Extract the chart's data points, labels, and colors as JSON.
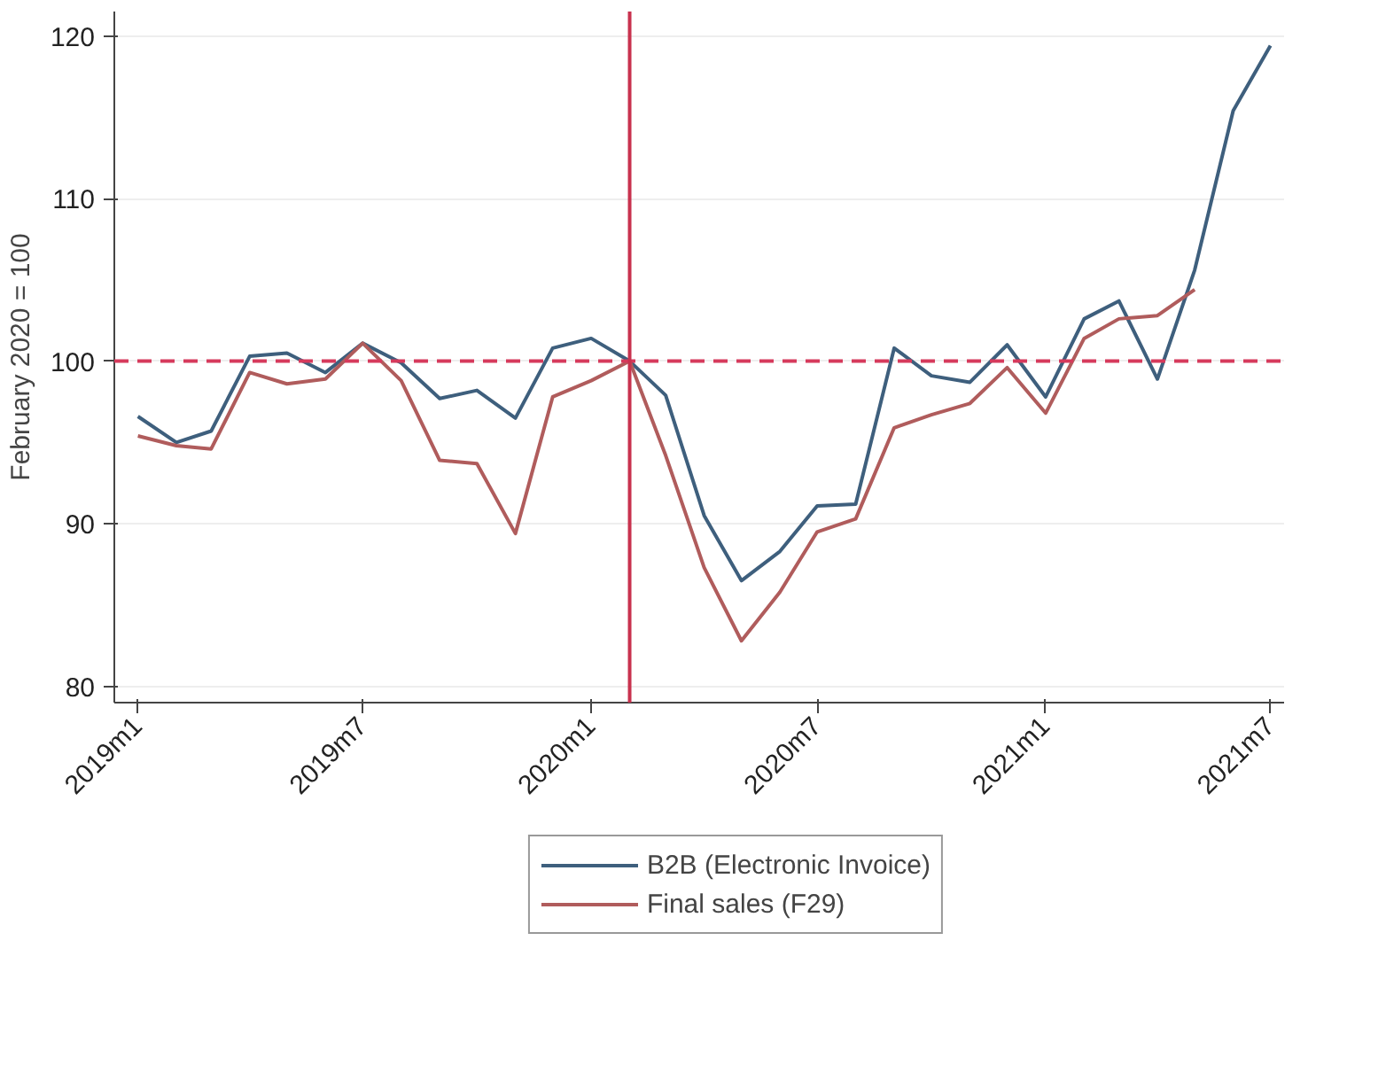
{
  "chart_data": {
    "type": "line",
    "ylabel": "February 2020 = 100",
    "x": [
      "2019-01",
      "2019-02",
      "2019-03",
      "2019-04",
      "2019-05",
      "2019-06",
      "2019-07",
      "2019-08",
      "2019-09",
      "2019-10",
      "2019-11",
      "2019-12",
      "2020-01",
      "2020-02",
      "2020-03",
      "2020-04",
      "2020-05",
      "2020-06",
      "2020-07",
      "2020-08",
      "2020-09",
      "2020-10",
      "2020-11",
      "2020-12",
      "2021-01",
      "2021-02",
      "2021-03",
      "2021-04",
      "2021-05",
      "2021-06",
      "2021-07"
    ],
    "series": [
      {
        "name": "B2B (Electronic Invoice)",
        "color": "#3e5f7d",
        "values": [
          96.6,
          95.0,
          95.7,
          100.3,
          100.5,
          99.3,
          101.1,
          99.9,
          97.7,
          98.2,
          96.5,
          100.8,
          101.4,
          100,
          97.9,
          90.5,
          86.5,
          88.3,
          91.1,
          91.2,
          100.8,
          99.1,
          98.7,
          101.0,
          97.8,
          102.6,
          103.7,
          98.9,
          105.6,
          115.4,
          119.4
        ]
      },
      {
        "name": "Final sales (F29)",
        "color": "#b05c5c",
        "values": [
          95.4,
          94.8,
          94.6,
          99.3,
          98.6,
          98.9,
          101.1,
          98.8,
          93.9,
          93.7,
          89.4,
          97.8,
          98.8,
          100,
          94.2,
          87.3,
          82.8,
          85.8,
          89.5,
          90.3,
          95.9,
          96.7,
          97.4,
          99.6,
          96.8,
          101.4,
          102.6,
          102.8,
          104.4,
          null,
          null
        ]
      }
    ],
    "xlim": [
      "2018-12-13",
      "2021-07-12"
    ],
    "ylim": [
      79,
      121.5
    ],
    "xticks": [
      {
        "value": "2019-01",
        "label": "2019m1"
      },
      {
        "value": "2019-07",
        "label": "2019m7"
      },
      {
        "value": "2020-01",
        "label": "2020m1"
      },
      {
        "value": "2020-07",
        "label": "2020m7"
      },
      {
        "value": "2021-01",
        "label": "2021m1"
      },
      {
        "value": "2021-07",
        "label": "2021m7"
      }
    ],
    "yticks": [
      80,
      90,
      100,
      110,
      120
    ],
    "ref_lines": [
      {
        "axis": "y",
        "value": 100,
        "color": "#d63a5c",
        "line_style": "dashed"
      },
      {
        "axis": "x",
        "value": "2020-02",
        "color": "#c8324e",
        "line_style": "solid"
      }
    ],
    "grid": "y",
    "legend": "bottom",
    "marker": "none",
    "line_style": "solid"
  }
}
